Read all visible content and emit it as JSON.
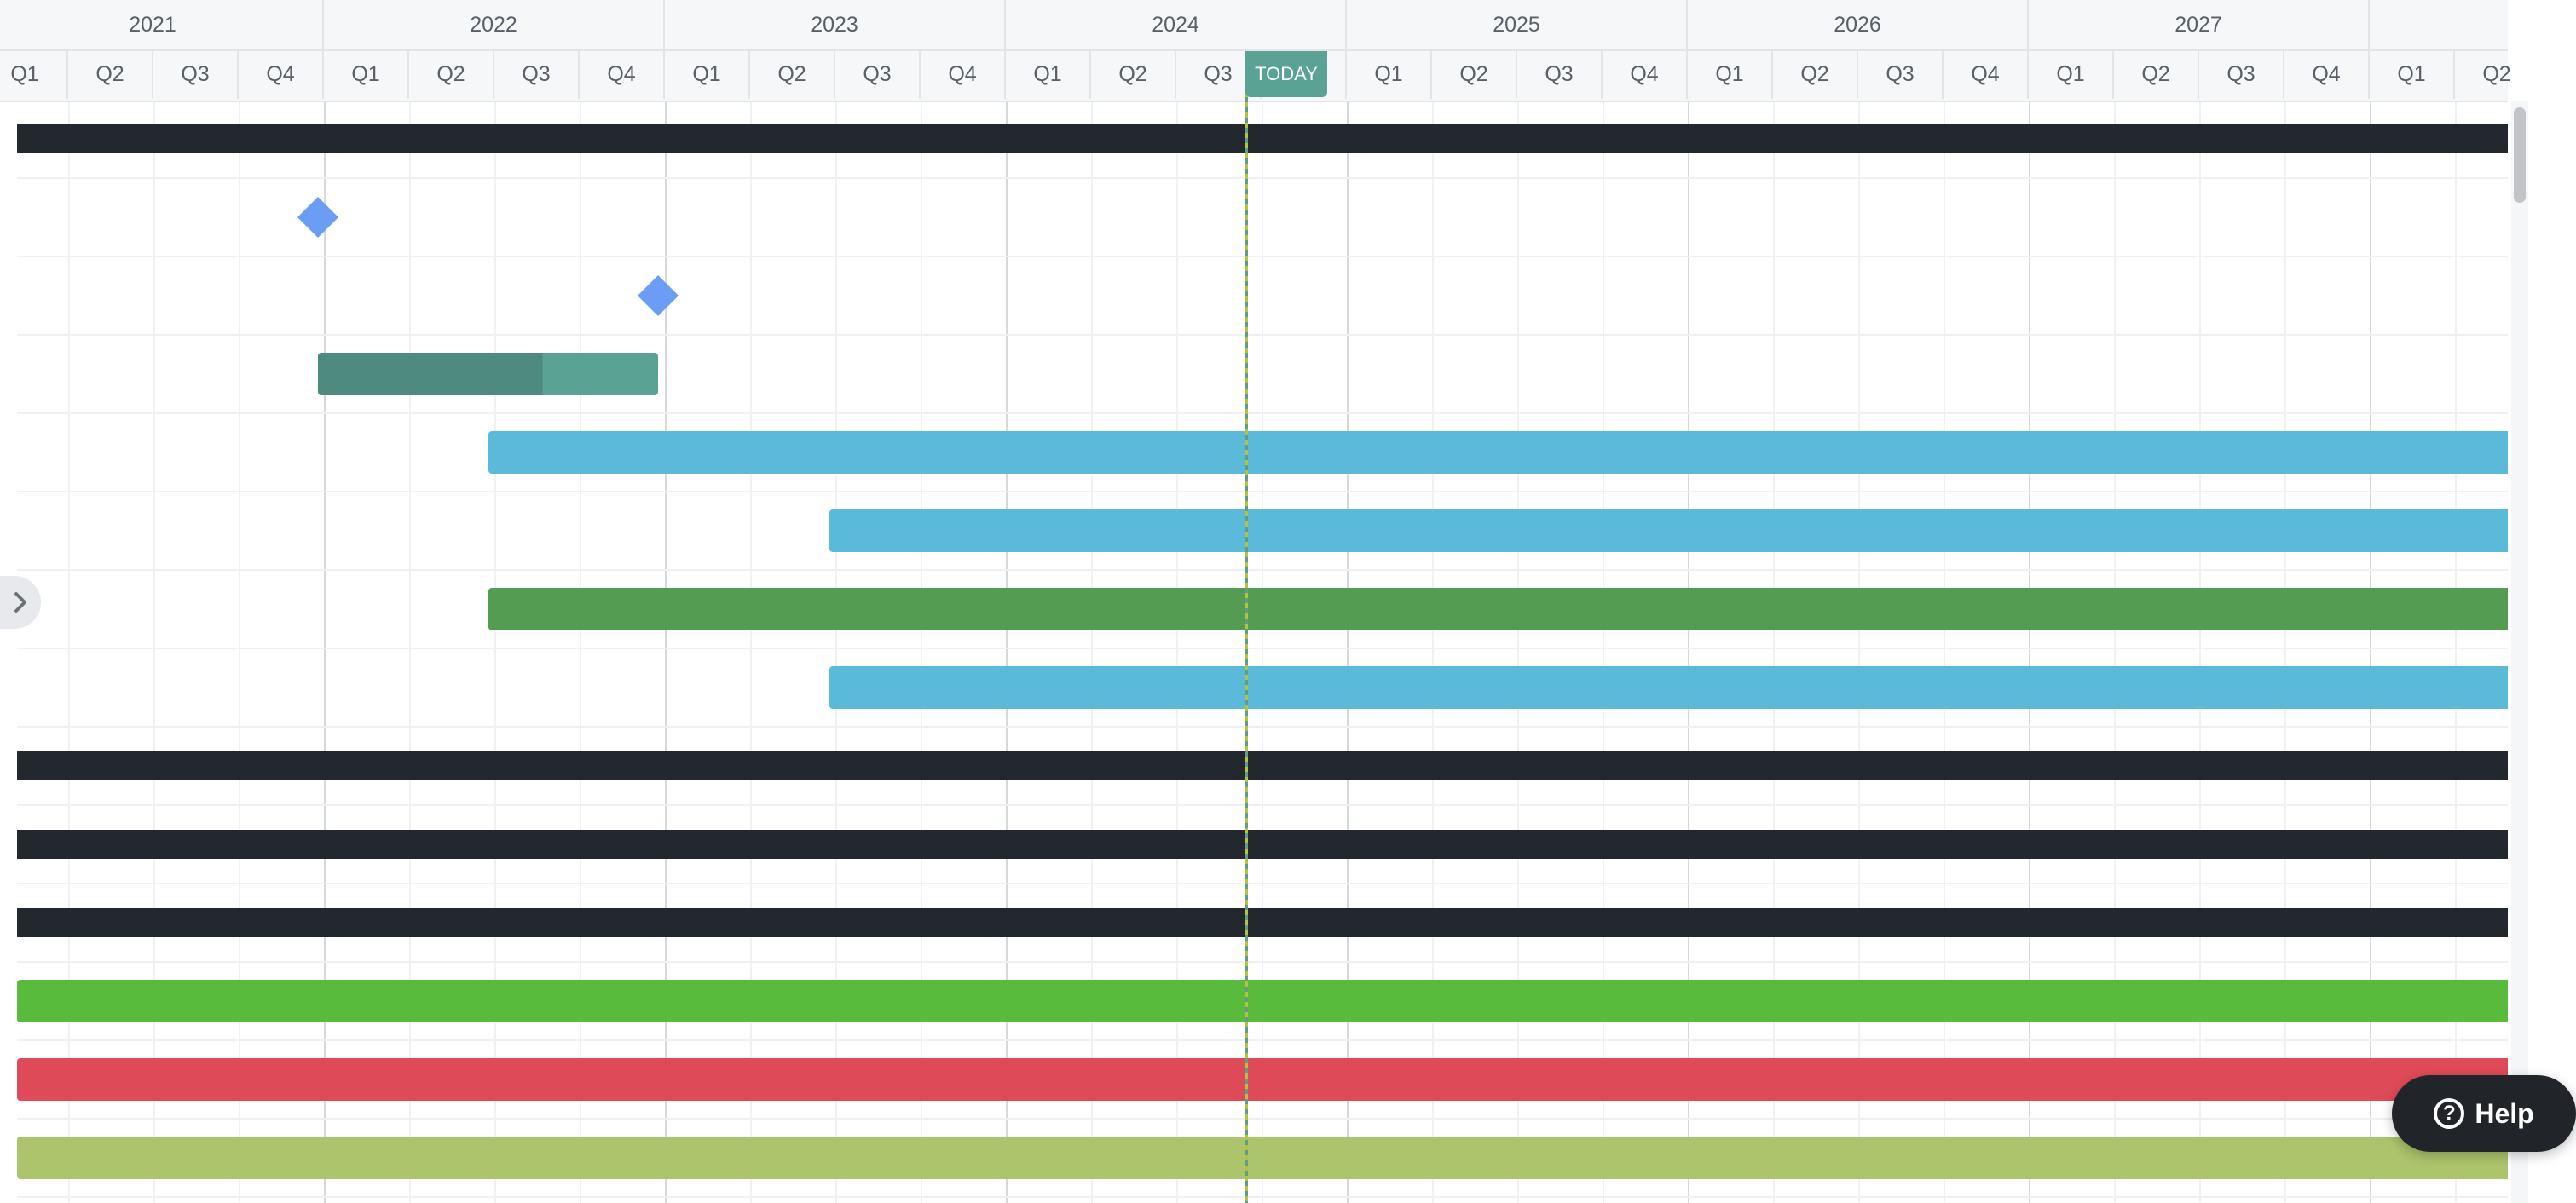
{
  "header": {
    "years": [
      "2021",
      "2022",
      "2023",
      "2024",
      "2025",
      "2026",
      "2027"
    ],
    "quarters": [
      "Q1",
      "Q2",
      "Q3",
      "Q4",
      "Q1",
      "Q2",
      "Q3",
      "Q4",
      "Q1",
      "Q2",
      "Q3",
      "Q4",
      "Q1",
      "Q2",
      "Q3",
      "Q4",
      "Q1",
      "Q2",
      "Q3",
      "Q4",
      "Q1",
      "Q2",
      "Q3",
      "Q4",
      "Q1",
      "Q2",
      "Q3",
      "Q4",
      "Q1",
      "Q2"
    ],
    "today_label": "TODAY"
  },
  "rows": [
    {
      "type": "bar",
      "style": "thin",
      "color": "#22282e"
    },
    {
      "type": "milestone",
      "color": "#6a9df3"
    },
    {
      "type": "milestone",
      "color": "#6a9df3"
    },
    {
      "type": "bar",
      "color": "#5aa394",
      "progress_color": "#4e8a7e",
      "progress": 0.66
    },
    {
      "type": "bar",
      "color": "#5bbad9"
    },
    {
      "type": "bar",
      "color": "#5bbad9"
    },
    {
      "type": "bar",
      "color": "#549c52"
    },
    {
      "type": "bar",
      "color": "#5bbad9"
    },
    {
      "type": "bar",
      "style": "thin",
      "color": "#22282e"
    },
    {
      "type": "bar",
      "style": "thin",
      "color": "#22282e"
    },
    {
      "type": "bar",
      "style": "thin",
      "color": "#22282e"
    },
    {
      "type": "bar",
      "color": "#58bb3b"
    },
    {
      "type": "bar",
      "color": "#df4a58"
    },
    {
      "type": "bar",
      "color": "#acc46b"
    }
  ],
  "help": {
    "label": "Help",
    "icon": "?"
  },
  "collapse_icon": "chevron-right-icon"
}
